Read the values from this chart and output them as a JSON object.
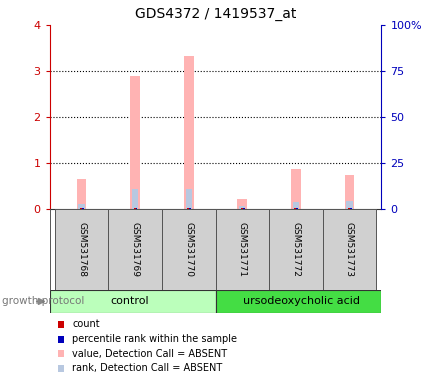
{
  "title": "GDS4372 / 1419537_at",
  "samples": [
    "GSM531768",
    "GSM531769",
    "GSM531770",
    "GSM531771",
    "GSM531772",
    "GSM531773"
  ],
  "value_absent": [
    0.65,
    2.9,
    3.32,
    0.22,
    0.88,
    0.75
  ],
  "rank_absent": [
    0.12,
    0.43,
    0.43,
    0.08,
    0.15,
    0.18
  ],
  "ylim_left": [
    0,
    4
  ],
  "ylim_right": [
    0,
    100
  ],
  "yticks_left": [
    0,
    1,
    2,
    3,
    4
  ],
  "yticks_right": [
    0,
    25,
    50,
    75,
    100
  ],
  "ytick_labels_right": [
    "0",
    "25",
    "50",
    "75",
    "100%"
  ],
  "color_value_absent": "#FFB3B3",
  "color_rank_absent": "#B8C8E0",
  "color_count": "#CC0000",
  "color_percentile": "#0000BB",
  "group_colors": {
    "control": "#BBFFBB",
    "ursodeoxycholic acid": "#44DD44"
  },
  "bar_bg_color": "#D0D0D0",
  "bar_border_color": "#555555",
  "bar_width": 0.18,
  "rank_bar_width": 0.12,
  "tiny_bar_width": 0.06,
  "legend_items": [
    {
      "label": "count",
      "color": "#CC0000"
    },
    {
      "label": "percentile rank within the sample",
      "color": "#0000BB"
    },
    {
      "label": "value, Detection Call = ABSENT",
      "color": "#FFB3B3"
    },
    {
      "label": "rank, Detection Call = ABSENT",
      "color": "#B8C8E0"
    }
  ],
  "growth_protocol_label": "growth protocol",
  "left_axis_color": "#CC0000",
  "right_axis_color": "#0000BB",
  "title_fontsize": 10
}
